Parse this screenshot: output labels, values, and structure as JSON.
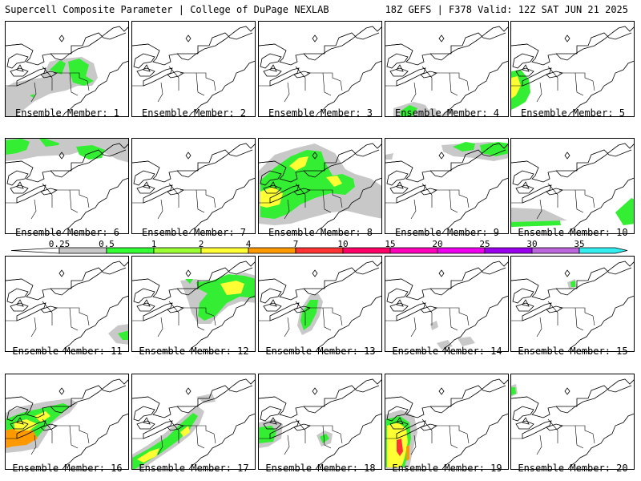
{
  "header": {
    "left": "Supercell Composite Parameter | College of DuPage NEXLAB",
    "right": "18Z GEFS | F378 Valid: 12Z SAT JUN 21 2025"
  },
  "legend": {
    "ticks": [
      "0.25",
      "0.5",
      "1",
      "2",
      "4",
      "7",
      "10",
      "15",
      "20",
      "25",
      "30",
      "35"
    ],
    "colors": [
      "#c8c8c8",
      "#33ff33",
      "#99ff33",
      "#ffff33",
      "#ff9900",
      "#ff3333",
      "#ff0066",
      "#ff00bb",
      "#ee00ee",
      "#9900ee",
      "#bb66dd",
      "#33eeee"
    ]
  },
  "colors": {
    "gray": "#c8c8c8",
    "green": "#33ee33",
    "lime": "#99ff33",
    "yellow": "#ffff33",
    "orange": "#ff9900",
    "red": "#ff3333"
  },
  "members": [
    {
      "label": "Ensemble Member: 1"
    },
    {
      "label": "Ensemble Member: 2"
    },
    {
      "label": "Ensemble Member: 3"
    },
    {
      "label": "Ensemble Member: 4"
    },
    {
      "label": "Ensemble Member: 5"
    },
    {
      "label": "Ensemble Member: 6"
    },
    {
      "label": "Ensemble Member: 7"
    },
    {
      "label": "Ensemble Member: 8"
    },
    {
      "label": "Ensemble Member: 9"
    },
    {
      "label": "Ensemble Member: 10"
    },
    {
      "label": "Ensemble Member: 11"
    },
    {
      "label": "Ensemble Member: 12"
    },
    {
      "label": "Ensemble Member: 13"
    },
    {
      "label": "Ensemble Member: 14"
    },
    {
      "label": "Ensemble Member: 15"
    },
    {
      "label": "Ensemble Member: 16"
    },
    {
      "label": "Ensemble Member: 17"
    },
    {
      "label": "Ensemble Member: 18"
    },
    {
      "label": "Ensemble Member: 19"
    },
    {
      "label": "Ensemble Member: 20"
    }
  ]
}
